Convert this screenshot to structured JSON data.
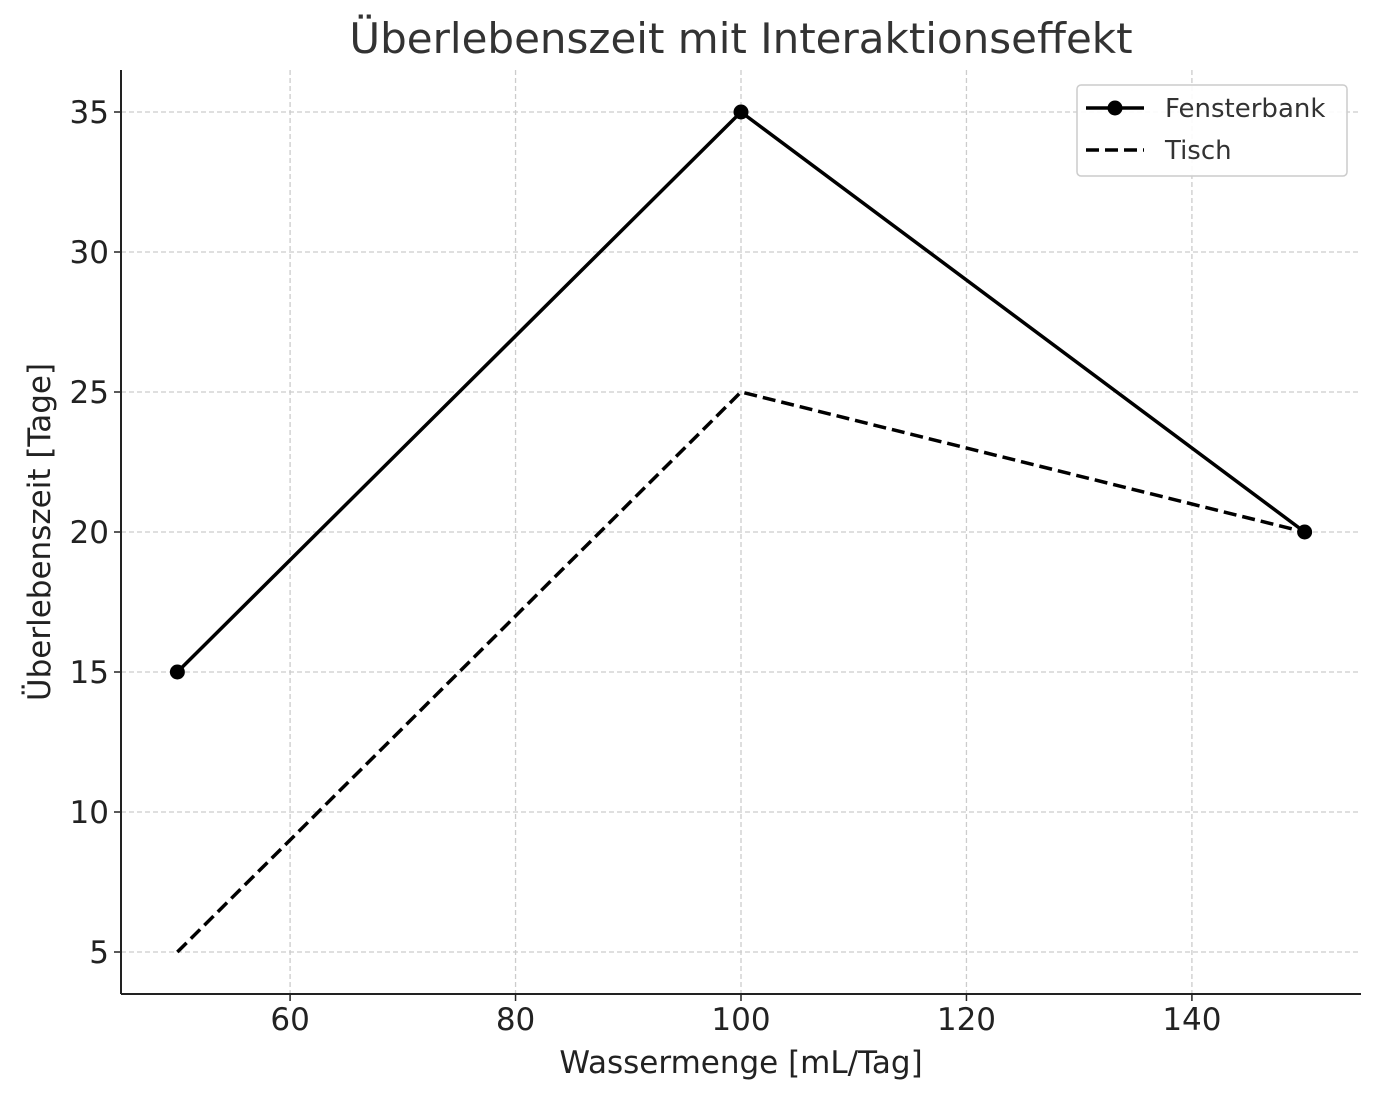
{
  "chart_data": {
    "type": "line",
    "title": "Überlebenszeit mit Interaktionseffekt",
    "xlabel": "Wassermenge [mL/Tag]",
    "ylabel": "Überlebenszeit [Tage]",
    "xlim": [
      45,
      155
    ],
    "ylim": [
      3.5,
      36.5
    ],
    "xticks": [
      60,
      80,
      100,
      120,
      140
    ],
    "yticks": [
      5,
      10,
      15,
      20,
      25,
      30,
      35
    ],
    "grid": true,
    "legend_position": "top-right",
    "series": [
      {
        "name": "Fensterbank",
        "style": "solid",
        "marker": "circle",
        "color": "#000000",
        "x": [
          50,
          100,
          150
        ],
        "y": [
          15,
          35,
          20
        ]
      },
      {
        "name": "Tisch",
        "style": "dashed",
        "marker": "none",
        "color": "#000000",
        "x": [
          50,
          100,
          150
        ],
        "y": [
          5,
          25,
          20
        ]
      }
    ]
  }
}
